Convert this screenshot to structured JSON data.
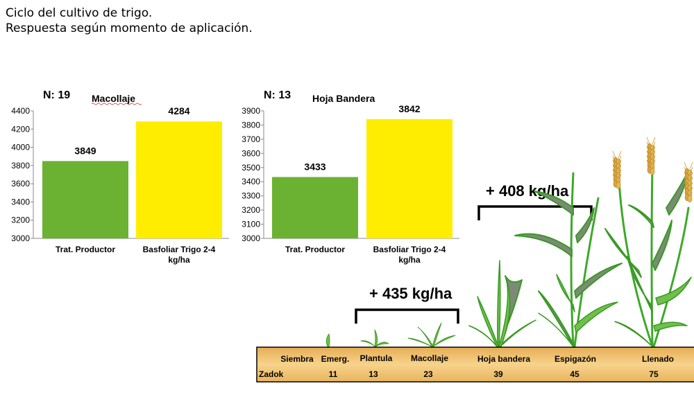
{
  "header": {
    "title_line1": "Ciclo del cultivo de trigo.",
    "title_line2": "Respuesta según momento de aplicación."
  },
  "chart_data": [
    {
      "type": "bar",
      "n_label": "N: 19",
      "title": "Macollaje",
      "categories": [
        "Trat. Productor",
        "Basfoliar Trigo 2-4 kg/ha"
      ],
      "category_lines": [
        [
          "Trat. Productor"
        ],
        [
          "Basfoliar Trigo  2-4",
          "kg/ha"
        ]
      ],
      "values": [
        3849,
        4284
      ],
      "value_labels": [
        "3849",
        "4284"
      ],
      "colors": [
        "#6bb232",
        "#ffed00"
      ],
      "ylim": [
        3000,
        4400
      ],
      "yticks": [
        3000,
        3200,
        3400,
        3600,
        3800,
        4000,
        4200,
        4400
      ],
      "ytick_labels": [
        "3000",
        "3200",
        "3400",
        "3600",
        "3800",
        "4000",
        "4200",
        "4400"
      ]
    },
    {
      "type": "bar",
      "n_label": "N: 13",
      "title": "Hoja Bandera",
      "categories": [
        "Trat. Productor",
        "Basfoliar Trigo 2-4 kg/ha"
      ],
      "category_lines": [
        [
          "Trat. Productor"
        ],
        [
          "Basfoliar Trigo  2-4",
          "kg/ha"
        ]
      ],
      "values": [
        3433,
        3842
      ],
      "value_labels": [
        "3433",
        "3842"
      ],
      "colors": [
        "#6bb232",
        "#ffed00"
      ],
      "ylim": [
        3000,
        3900
      ],
      "yticks": [
        3000,
        3100,
        3200,
        3300,
        3400,
        3500,
        3600,
        3700,
        3800,
        3900
      ],
      "ytick_labels": [
        "3000",
        "3100",
        "3200",
        "3300",
        "3400",
        "3500",
        "3600",
        "3700",
        "3800",
        "3900"
      ]
    }
  ],
  "annotations": {
    "gain_macollaje": "+ 435 kg/ha",
    "gain_hoja_bandera": "+ 408 kg/ha"
  },
  "timeline": {
    "stages": [
      "Siembra",
      "Emerg.",
      "Plantula",
      "Macollaje",
      "Hoja bandera",
      "Espigazón",
      "Llenado"
    ],
    "zadok_label": "Zadok",
    "zadok_values": [
      "11",
      "13",
      "23",
      "39",
      "45",
      "75"
    ],
    "band_color": "#f3c470"
  }
}
